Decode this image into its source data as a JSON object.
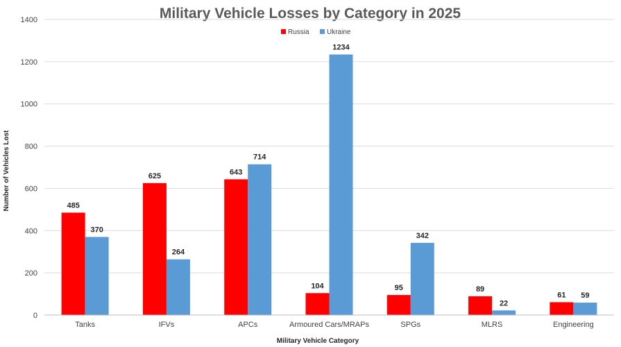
{
  "chart_data": {
    "type": "bar",
    "title": "Military Vehicle Losses by Category in 2025",
    "xlabel": "Military Vehicle Category",
    "ylabel": "Number of Vehicles Lost",
    "ylim": [
      0,
      1400
    ],
    "yticks": [
      0,
      200,
      400,
      600,
      800,
      1000,
      1200,
      1400
    ],
    "grid": true,
    "legend_position": "top-center",
    "categories": [
      "Tanks",
      "IFVs",
      "APCs",
      "Armoured Cars/MRAPs",
      "SPGs",
      "MLRS",
      "Engineering"
    ],
    "series": [
      {
        "name": "Russia",
        "color": "#ff0000",
        "values": [
          485,
          625,
          643,
          104,
          95,
          89,
          61
        ]
      },
      {
        "name": "Ukraine",
        "color": "#5b9bd5",
        "values": [
          370,
          264,
          714,
          1234,
          342,
          22,
          59
        ]
      }
    ]
  }
}
